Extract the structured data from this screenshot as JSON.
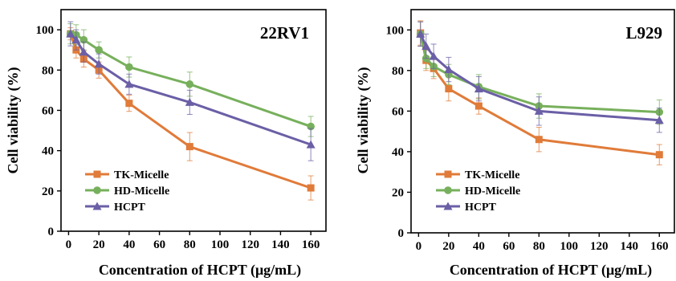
{
  "chart_data": [
    {
      "type": "line",
      "title": "22RV1",
      "xlabel": "Concentration of HCPT (μg/mL)",
      "ylabel": "Cell viability (%)",
      "xlim": [
        -5,
        170
      ],
      "ylim": [
        0,
        110
      ],
      "xticks": [
        0,
        20,
        40,
        60,
        80,
        100,
        120,
        140,
        160
      ],
      "yticks": [
        0,
        20,
        40,
        60,
        80,
        100
      ],
      "legend_position": "bottom-left",
      "series": [
        {
          "name": "TK-Micelle",
          "color": "#E07B39",
          "marker": "square",
          "x": [
            1.25,
            5,
            10,
            20,
            40,
            80,
            160
          ],
          "y": [
            98,
            90,
            85.5,
            80,
            63.5,
            42,
            21.5
          ],
          "error": [
            3,
            4,
            4,
            4,
            4,
            7,
            6
          ]
        },
        {
          "name": "HD-Micelle",
          "color": "#77B05C",
          "marker": "circle",
          "x": [
            1.25,
            5,
            10,
            20,
            40,
            80,
            160
          ],
          "y": [
            98,
            97.5,
            95,
            90,
            81.5,
            73,
            52
          ],
          "error": [
            5,
            5,
            5,
            4,
            5,
            6,
            5
          ]
        },
        {
          "name": "HCPT",
          "color": "#6B5FA6",
          "marker": "triangle",
          "x": [
            1.25,
            5,
            10,
            20,
            40,
            80,
            160
          ],
          "y": [
            98,
            95,
            89,
            83,
            73,
            64,
            43
          ],
          "error": [
            6,
            5,
            5,
            5,
            5,
            6,
            8
          ]
        }
      ]
    },
    {
      "type": "line",
      "title": "L929",
      "xlabel": "Concentration of HCPT (μg/mL)",
      "ylabel": "Cell viability (%)",
      "xlim": [
        -5,
        170
      ],
      "ylim": [
        0,
        110
      ],
      "xticks": [
        0,
        20,
        40,
        60,
        80,
        100,
        120,
        140,
        160
      ],
      "yticks": [
        0,
        20,
        40,
        60,
        80,
        100
      ],
      "legend_position": "bottom-left",
      "series": [
        {
          "name": "TK-Micelle",
          "color": "#E07B39",
          "marker": "square",
          "x": [
            1.25,
            5,
            10,
            20,
            40,
            80,
            160
          ],
          "y": [
            98.5,
            85,
            81,
            71,
            62.5,
            46,
            38.5
          ],
          "error": [
            6,
            5,
            5,
            6,
            4,
            6,
            5
          ]
        },
        {
          "name": "HD-Micelle",
          "color": "#77B05C",
          "marker": "circle",
          "x": [
            1.25,
            5,
            10,
            20,
            40,
            80,
            160
          ],
          "y": [
            98,
            86,
            82,
            78,
            72,
            62.5,
            59.5
          ],
          "error": [
            6,
            5,
            5,
            5,
            6,
            6,
            6
          ]
        },
        {
          "name": "HCPT",
          "color": "#6B5FA6",
          "marker": "triangle",
          "x": [
            1.25,
            5,
            10,
            20,
            40,
            80,
            160
          ],
          "y": [
            98,
            92,
            87,
            80.5,
            71,
            60,
            55.5
          ],
          "error": [
            6,
            6,
            6,
            6,
            6,
            7,
            6
          ]
        }
      ]
    }
  ]
}
